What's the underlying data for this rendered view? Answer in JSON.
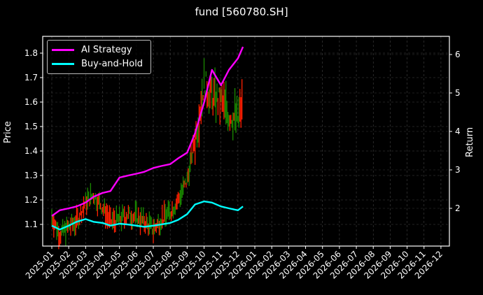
{
  "chart_data": {
    "type": "line",
    "title": "fund [560780.SH]",
    "xlabel": "",
    "ylabel": "Price",
    "ylabel_right": "Return",
    "ylim": [
      1.02,
      1.87
    ],
    "ylim_right": [
      1.1,
      6.45
    ],
    "yticks": [
      "1.1",
      "1.2",
      "1.3",
      "1.4",
      "1.5",
      "1.6",
      "1.7",
      "1.8"
    ],
    "yticks_right": [
      "2",
      "3",
      "4",
      "5",
      "6"
    ],
    "xticks": [
      "2025-01",
      "2025-02",
      "2025-03",
      "2025-04",
      "2025-05",
      "2025-06",
      "2025-07",
      "2025-08",
      "2025-09",
      "2025-10",
      "2025-11",
      "2025-12",
      "2026-01",
      "2026-02",
      "2026-03",
      "2026-04",
      "2026-05",
      "2026-06",
      "2026-07",
      "2026-08",
      "2026-09",
      "2026-10",
      "2026-11",
      "2026-12"
    ],
    "grid": true,
    "legend_position": "upper left",
    "x": [
      "2025-01-01",
      "2025-01-15",
      "2025-02-01",
      "2025-02-15",
      "2025-03-01",
      "2025-03-15",
      "2025-04-01",
      "2025-04-15",
      "2025-05-01",
      "2025-05-15",
      "2025-06-01",
      "2025-06-15",
      "2025-07-01",
      "2025-07-15",
      "2025-08-01",
      "2025-08-15",
      "2025-09-01",
      "2025-09-15",
      "2025-10-01",
      "2025-10-15",
      "2025-11-01",
      "2025-11-15",
      "2025-12-01",
      "2025-12-10"
    ],
    "series": [
      {
        "name": "AI Strategy",
        "color": "#ff00ff",
        "axis": "right",
        "values": [
          1.8,
          1.95,
          2.0,
          2.05,
          2.15,
          2.3,
          2.4,
          2.45,
          2.8,
          2.85,
          2.9,
          2.95,
          3.05,
          3.1,
          3.15,
          3.3,
          3.45,
          3.95,
          4.75,
          5.6,
          5.2,
          5.6,
          5.9,
          6.2
        ]
      },
      {
        "name": "Buy-and-Hold",
        "color": "#00ffff",
        "axis": "right",
        "values": [
          1.55,
          1.45,
          1.55,
          1.65,
          1.72,
          1.65,
          1.62,
          1.55,
          1.6,
          1.58,
          1.55,
          1.52,
          1.55,
          1.58,
          1.62,
          1.7,
          1.85,
          2.1,
          2.18,
          2.15,
          2.05,
          2.0,
          1.95,
          2.05
        ]
      },
      {
        "name": "Price (candles)",
        "color": "#ff2a00",
        "axis": "left",
        "values": [
          1.13,
          1.06,
          1.09,
          1.11,
          1.19,
          1.22,
          1.17,
          1.11,
          1.12,
          1.14,
          1.13,
          1.11,
          1.08,
          1.12,
          1.15,
          1.2,
          1.28,
          1.45,
          1.68,
          1.62,
          1.6,
          1.55,
          1.53,
          1.6
        ]
      }
    ]
  },
  "legend": {
    "items": [
      {
        "label": "AI Strategy",
        "color": "#ff00ff"
      },
      {
        "label": "Buy-and-Hold",
        "color": "#00ffff"
      }
    ]
  }
}
